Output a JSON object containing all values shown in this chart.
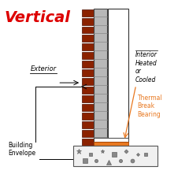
{
  "title": "Vertical",
  "title_color": "#DD0000",
  "title_fontsize": 14,
  "bg_color": "#FFFFFF",
  "exterior_label": "Exterior",
  "interior_label": "Interior\nHeated\nor\nCooled",
  "thermal_label": "Thermal\nBreak\nBearing",
  "building_label": "Building\nEnvelope",
  "label_color": "#000000",
  "orange_color": "#E87820",
  "brick_color": "#8B2200",
  "brick_mortar": "#cccccc",
  "concrete_color": "#B8B8B8",
  "wall_outline": "#444444",
  "slab_bg": "#F0F0F0",
  "slab_outline": "#555555",
  "col_color": "#FFFFFF",
  "col_outline": "#333333"
}
